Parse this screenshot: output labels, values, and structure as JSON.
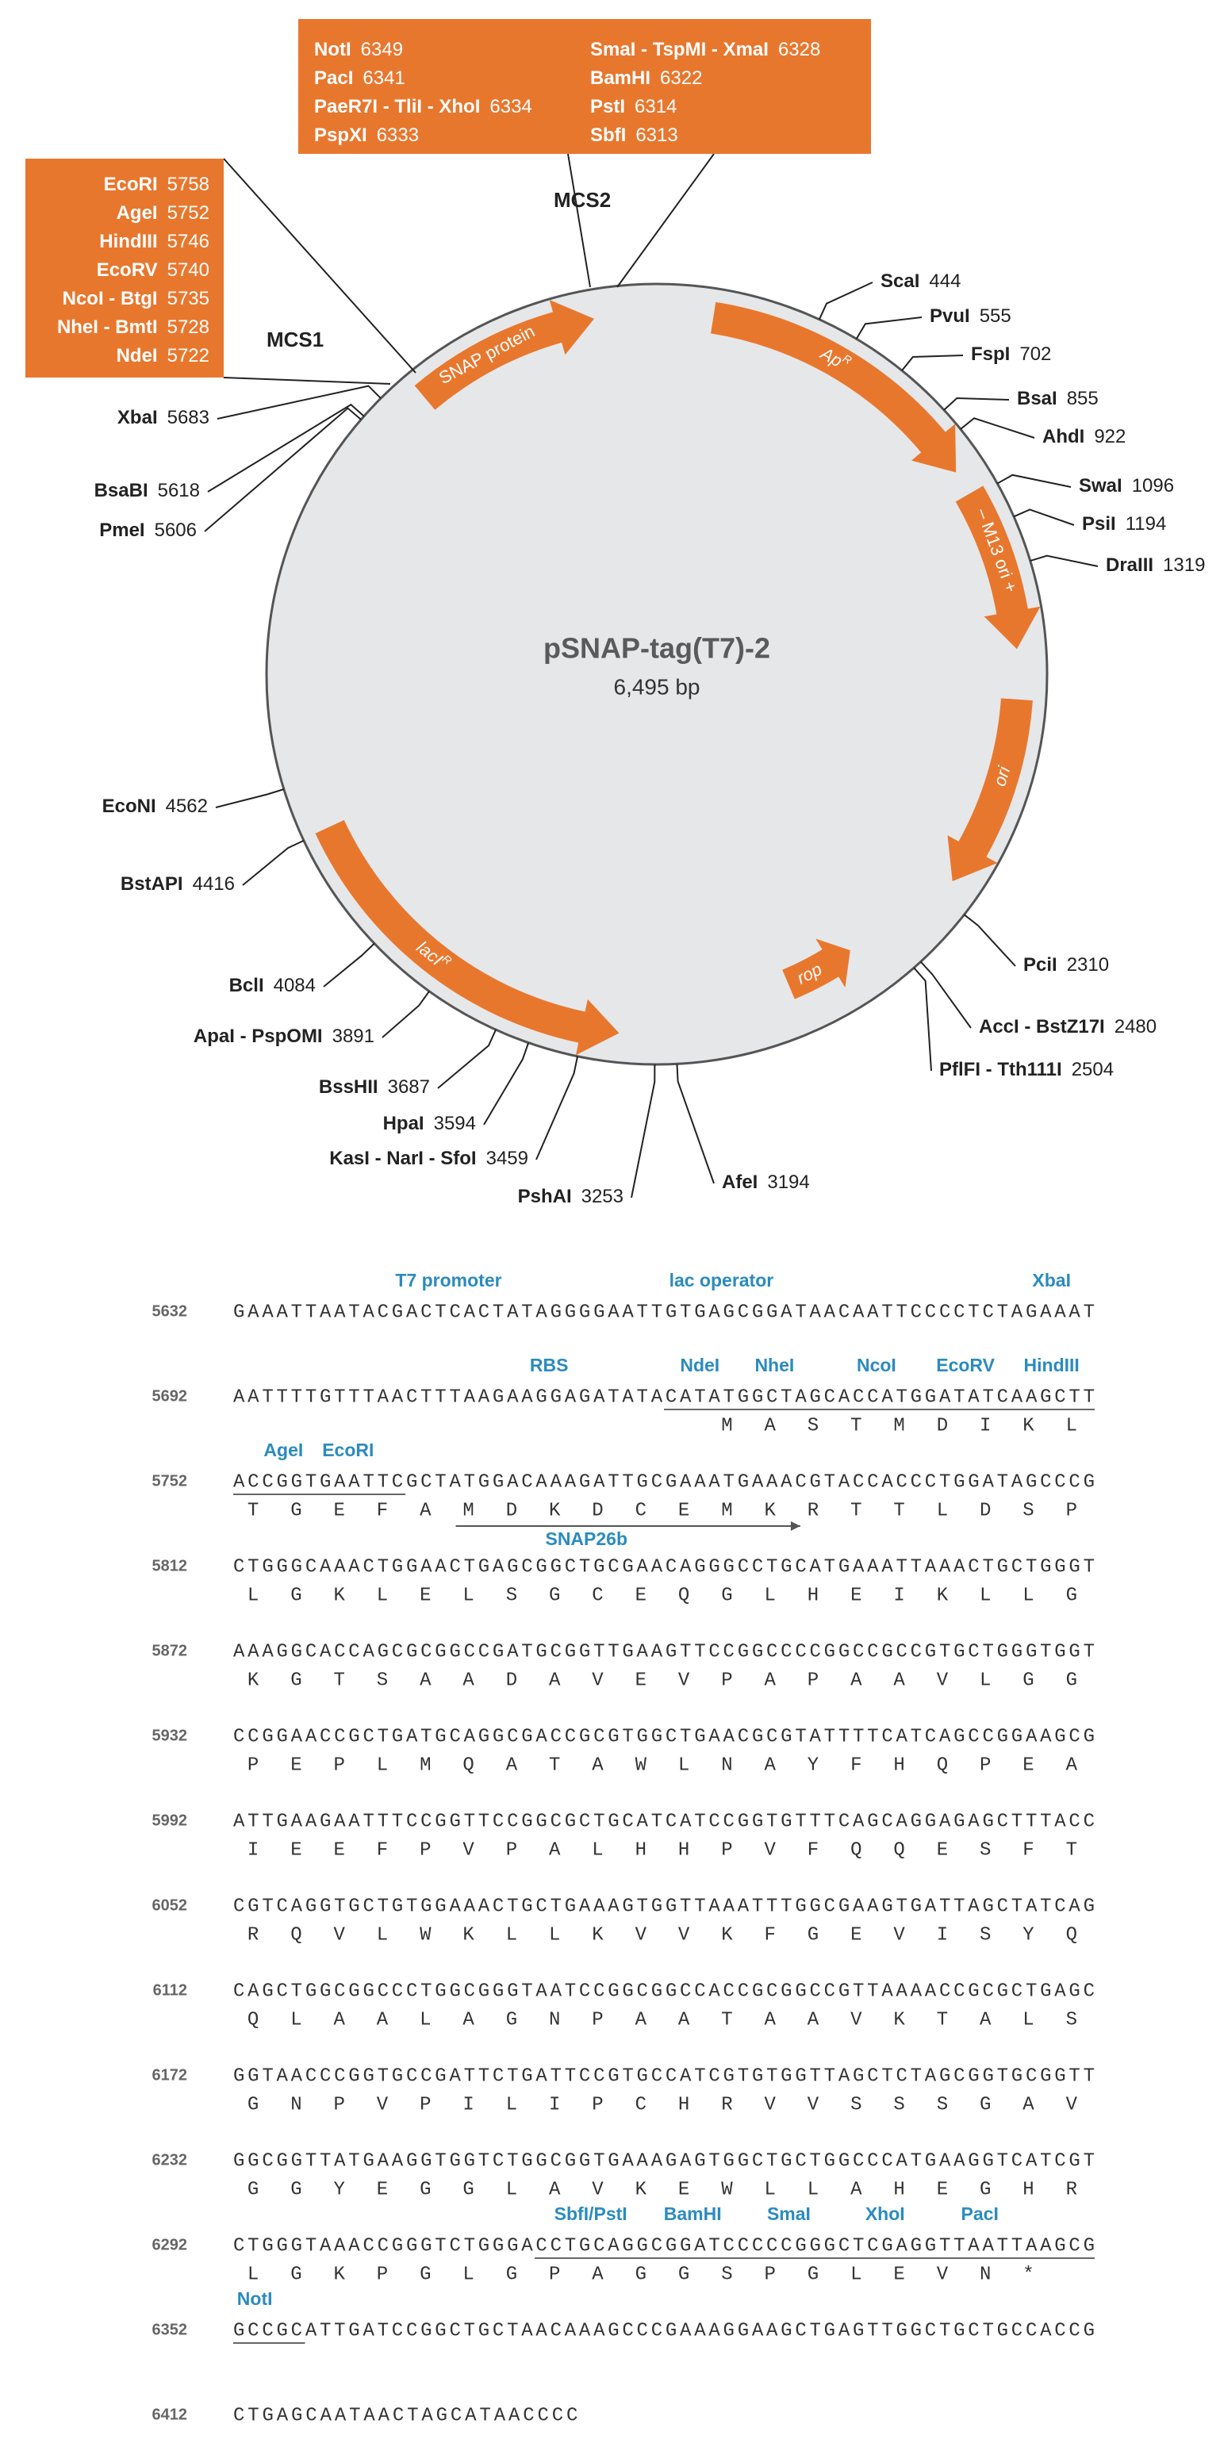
{
  "map": {
    "name": "pSNAP-tag(T7)-2",
    "size": {
      "value": 6495,
      "label": "6,495 bp"
    },
    "features": [
      {
        "label": "SNAP protein"
      },
      {
        "label": "Ap",
        "sup": "R",
        "italic": true
      },
      {
        "label": "– M13 ori +"
      },
      {
        "label": "ori",
        "italic": true
      },
      {
        "label": "rop",
        "italic": true
      },
      {
        "label": "lacI",
        "sup": "R",
        "italic": true
      }
    ],
    "sites": [
      {
        "name": "ScaI",
        "pos": 444
      },
      {
        "name": "PvuI",
        "pos": 555
      },
      {
        "name": "FspI",
        "pos": 702
      },
      {
        "name": "BsaI",
        "pos": 855
      },
      {
        "name": "AhdI",
        "pos": 922
      },
      {
        "name": "SwaI",
        "pos": 1096
      },
      {
        "name": "PsiI",
        "pos": 1194
      },
      {
        "name": "DraIII",
        "pos": 1319
      },
      {
        "name": "PciI",
        "pos": 2310
      },
      {
        "name": "AccI - BstZ17I",
        "pos": 2480
      },
      {
        "name": "PflFI - Tth111I",
        "pos": 2504
      },
      {
        "name": "AfeI",
        "pos": 3194
      },
      {
        "name": "PshAI",
        "pos": 3253
      },
      {
        "name": "KasI - NarI - SfoI",
        "pos": 3459
      },
      {
        "name": "HpaI",
        "pos": 3594
      },
      {
        "name": "BssHII",
        "pos": 3687
      },
      {
        "name": "ApaI - PspOMI",
        "pos": 3891
      },
      {
        "name": "BclI",
        "pos": 4084
      },
      {
        "name": "BstAPI",
        "pos": 4416
      },
      {
        "name": "EcoNI",
        "pos": 4562
      },
      {
        "name": "PmeI",
        "pos": 5606
      },
      {
        "name": "BsaBI",
        "pos": 5618
      },
      {
        "name": "XbaI",
        "pos": 5683
      }
    ],
    "mcs1": {
      "label": "MCS1",
      "sites": [
        {
          "name": "EcoRI",
          "pos": 5758
        },
        {
          "name": "AgeI",
          "pos": 5752
        },
        {
          "name": "HindIII",
          "pos": 5746
        },
        {
          "name": "EcoRV",
          "pos": 5740
        },
        {
          "name": "NcoI - BtgI",
          "pos": 5735
        },
        {
          "name": "NheI - BmtI",
          "pos": 5728
        },
        {
          "name": "NdeI",
          "pos": 5722
        }
      ]
    },
    "mcs2": {
      "label": "MCS2",
      "sites": [
        {
          "name": "NotI",
          "pos": 6349
        },
        {
          "name": "PacI",
          "pos": 6341
        },
        {
          "name": "PaeR7I - TliI - XhoI",
          "pos": 6334
        },
        {
          "name": "PspXI",
          "pos": 6333
        },
        {
          "name": "SmaI - TspMI - XmaI",
          "pos": 6328
        },
        {
          "name": "BamHI",
          "pos": 6322
        },
        {
          "name": "PstI",
          "pos": 6314
        },
        {
          "name": "SbfI",
          "pos": 6313
        }
      ]
    }
  },
  "sequence": {
    "rows": [
      {
        "num": 5632,
        "dna": "GAAATTAATACGACTCACTATAGGGGAATTGTGAGCGGATAACAATTCCCCTCTAGAAAT",
        "labels": [
          "T7 promoter",
          "lac operator",
          "XbaI"
        ]
      },
      {
        "num": 5692,
        "dna": "AATTTTGTTTAACTTTAAGAAGGAGATATACATATGGCTAGCACCATGGATATCAAGCTT",
        "labels": [
          "RBS",
          "NdeI",
          "NheI",
          "NcoI",
          "EcoRV",
          "HindIII"
        ],
        "protein": [
          "M",
          "A",
          "S",
          "T",
          "M",
          "D",
          "I",
          "K",
          "L"
        ]
      },
      {
        "num": 5752,
        "dna": "ACCGGTGAATTCGCTATGGACAAAGATTGCGAAATGAAACGTACCACCCTGGATAGCCCG",
        "labels": [
          "AgeI",
          "EcoRI"
        ],
        "protein": [
          "T",
          "G",
          "E",
          "F",
          "A",
          "M",
          "D",
          "K",
          "D",
          "C",
          "E",
          "M",
          "K",
          "R",
          "T",
          "T",
          "L",
          "D",
          "S",
          "P"
        ],
        "primer": "SNAP26b"
      },
      {
        "num": 5812,
        "dna": "CTGGGCAAACTGGAACTGAGCGGCTGCGAACAGGGCCTGCATGAAATTAAACTGCTGGGT",
        "protein": [
          "L",
          "G",
          "K",
          "L",
          "E",
          "L",
          "S",
          "G",
          "C",
          "E",
          "Q",
          "G",
          "L",
          "H",
          "E",
          "I",
          "K",
          "L",
          "L",
          "G"
        ]
      },
      {
        "num": 5872,
        "dna": "AAAGGCACCAGCGCGGCCGATGCGGTTGAAGTTCCGGCCCCGGCCGCCGTGCTGGGTGGT",
        "protein": [
          "K",
          "G",
          "T",
          "S",
          "A",
          "A",
          "D",
          "A",
          "V",
          "E",
          "V",
          "P",
          "A",
          "P",
          "A",
          "A",
          "V",
          "L",
          "G",
          "G"
        ]
      },
      {
        "num": 5932,
        "dna": "CCGGAACCGCTGATGCAGGCGACCGCGTGGCTGAACGCGTATTTTCATCAGCCGGAAGCG",
        "protein": [
          "P",
          "E",
          "P",
          "L",
          "M",
          "Q",
          "A",
          "T",
          "A",
          "W",
          "L",
          "N",
          "A",
          "Y",
          "F",
          "H",
          "Q",
          "P",
          "E",
          "A"
        ]
      },
      {
        "num": 5992,
        "dna": "ATTGAAGAATTTCCGGTTCCGGCGCTGCATCATCCGGTGTTTCAGCAGGAGAGCTTTACC",
        "protein": [
          "I",
          "E",
          "E",
          "F",
          "P",
          "V",
          "P",
          "A",
          "L",
          "H",
          "H",
          "P",
          "V",
          "F",
          "Q",
          "Q",
          "E",
          "S",
          "F",
          "T"
        ]
      },
      {
        "num": 6052,
        "dna": "CGTCAGGTGCTGTGGAAACTGCTGAAAGTGGTTAAATTTGGCGAAGTGATTAGCTATCAG",
        "protein": [
          "R",
          "Q",
          "V",
          "L",
          "W",
          "K",
          "L",
          "L",
          "K",
          "V",
          "V",
          "K",
          "F",
          "G",
          "E",
          "V",
          "I",
          "S",
          "Y",
          "Q"
        ]
      },
      {
        "num": 6112,
        "dna": "CAGCTGGCGGCCCTGGCGGGTAATCCGGCGGCCACCGCGGCCGTTAAAACCGCGCTGAGC",
        "protein": [
          "Q",
          "L",
          "A",
          "A",
          "L",
          "A",
          "G",
          "N",
          "P",
          "A",
          "A",
          "T",
          "A",
          "A",
          "V",
          "K",
          "T",
          "A",
          "L",
          "S"
        ]
      },
      {
        "num": 6172,
        "dna": "GGTAACCCGGTGCCGATTCTGATTCCGTGCCATCGTGTGGTTAGCTCTAGCGGTGCGGTT",
        "protein": [
          "G",
          "N",
          "P",
          "V",
          "P",
          "I",
          "L",
          "I",
          "P",
          "C",
          "H",
          "R",
          "V",
          "V",
          "S",
          "S",
          "S",
          "G",
          "A",
          "V"
        ]
      },
      {
        "num": 6232,
        "dna": "GGCGGTTATGAAGGTGGTCTGGCGGTGAAAGAGTGGCTGCTGGCCCATGAAGGTCATCGT",
        "protein": [
          "G",
          "G",
          "Y",
          "E",
          "G",
          "G",
          "L",
          "A",
          "V",
          "K",
          "E",
          "W",
          "L",
          "L",
          "A",
          "H",
          "E",
          "G",
          "H",
          "R"
        ]
      },
      {
        "num": 6292,
        "dna": "CTGGGTAAACCGGGTCTGGGACCTGCAGGCGGATCCCCCGGGCTCGAGGTTAATTAAGCG",
        "labels": [
          "SbfI/PstI",
          "BamHI",
          "SmaI",
          "XhoI",
          "PacI"
        ],
        "protein": [
          "L",
          "G",
          "K",
          "P",
          "G",
          "L",
          "G",
          "P",
          "A",
          "G",
          "G",
          "S",
          "P",
          "G",
          "L",
          "E",
          "V",
          "N",
          "*"
        ]
      },
      {
        "num": 6352,
        "dna": "GCCGCATTGATCCGGCTGCTAACAAAGCCCGAAAGGAAGCTGAGTTGGCTGCTGCCACCG",
        "labels": [
          "NotI"
        ]
      },
      {
        "num": 6412,
        "dna": "CTGAGCAATAACTAGCATAACCCC"
      }
    ]
  }
}
